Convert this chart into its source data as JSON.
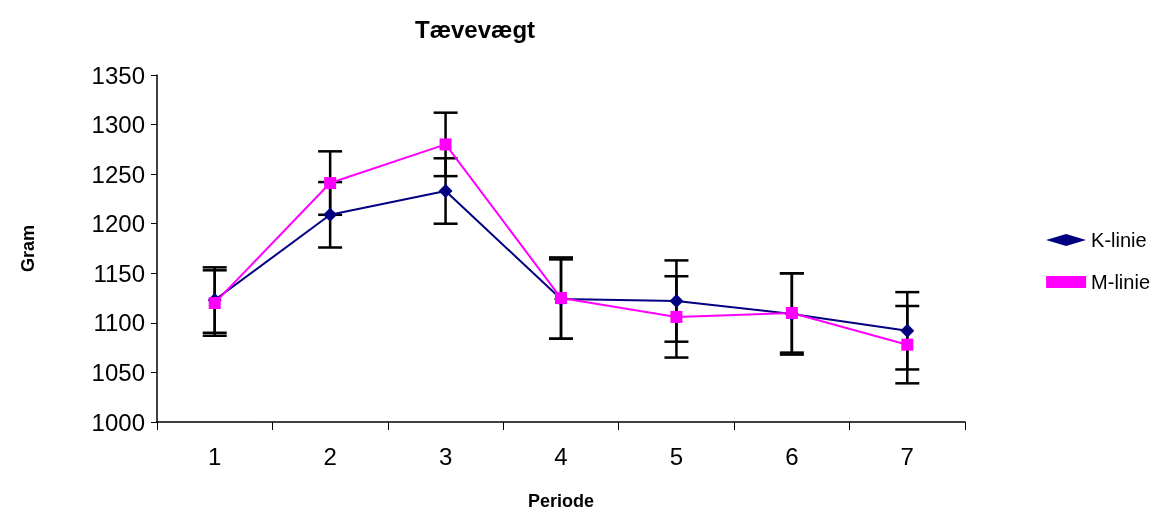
{
  "chart_data": {
    "type": "line",
    "title": "Tævevægt",
    "xlabel": "Periode",
    "ylabel": "Gram",
    "categories": [
      "1",
      "2",
      "3",
      "4",
      "5",
      "6",
      "7"
    ],
    "series": [
      {
        "name": "K-linie",
        "color": "#000080",
        "marker": "diamond",
        "values": [
          1123,
          1209,
          1233,
          1124,
          1122,
          1109,
          1092
        ],
        "errors": [
          33,
          33,
          33,
          40,
          41,
          41,
          39
        ]
      },
      {
        "name": "M-linie",
        "color": "#ff00ff",
        "marker": "square",
        "values": [
          1120,
          1241,
          1280,
          1125,
          1106,
          1110,
          1078
        ],
        "errors": [
          33,
          32,
          32,
          41,
          41,
          40,
          39
        ]
      }
    ],
    "ylim": [
      1000,
      1350
    ],
    "yticks": [
      1000,
      1050,
      1100,
      1150,
      1200,
      1250,
      1300,
      1350
    ],
    "grid": false,
    "legend": "right",
    "line_style": "solid"
  }
}
